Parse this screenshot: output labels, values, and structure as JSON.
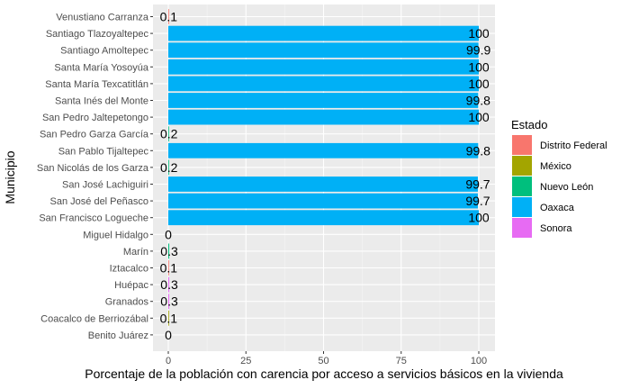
{
  "chart_data": {
    "type": "bar",
    "orientation": "horizontal",
    "xlabel": "Porcentaje de la población con carencia por acceso a servicios básicos en la vivienda",
    "ylabel": "Municipio",
    "xlim": [
      0,
      100
    ],
    "x_ticks": [
      0,
      25,
      50,
      75,
      100
    ],
    "grid": true,
    "legend": {
      "title": "Estado",
      "position": "right",
      "entries": [
        {
          "name": "Distrito Federal",
          "color": "#F8766D"
        },
        {
          "name": "México",
          "color": "#A3A500"
        },
        {
          "name": "Nuevo León",
          "color": "#00BF7D"
        },
        {
          "name": "Oaxaca",
          "color": "#00B0F6"
        },
        {
          "name": "Sonora",
          "color": "#E76BF3"
        }
      ]
    },
    "categories": [
      "Venustiano Carranza",
      "Santiago Tlazoyaltepec",
      "Santiago Amoltepec",
      "Santa María Yosoyúa",
      "Santa María Texcatitlán",
      "Santa Inés del Monte",
      "San Pedro Jaltepetongo",
      "San Pedro Garza García",
      "San Pablo Tijaltepec",
      "San Nicolás de los Garza",
      "San José Lachiguiri",
      "San José del Peñasco",
      "San Francisco Logueche",
      "Miguel Hidalgo",
      "Marín",
      "Iztacalco",
      "Huépac",
      "Granados",
      "Coacalco de Berriozábal",
      "Benito Juárez"
    ],
    "values": [
      0.1,
      100,
      99.9,
      100,
      100,
      99.8,
      100,
      0.2,
      99.8,
      0.2,
      99.7,
      99.7,
      100,
      0,
      0.3,
      0.1,
      0.3,
      0.3,
      0.1,
      0
    ],
    "labels": [
      "0.1",
      "100",
      "99.9",
      "100",
      "100",
      "99.8",
      "100",
      "0.2",
      "99.8",
      "0.2",
      "99.7",
      "99.7",
      "100",
      "0",
      "0.3",
      "0.1",
      "0.3",
      "0.3",
      "0.1",
      "0"
    ],
    "groups": [
      "Distrito Federal",
      "Oaxaca",
      "Oaxaca",
      "Oaxaca",
      "Oaxaca",
      "Oaxaca",
      "Oaxaca",
      "Nuevo León",
      "Oaxaca",
      "Nuevo León",
      "Oaxaca",
      "Oaxaca",
      "Oaxaca",
      "Distrito Federal",
      "Nuevo León",
      "Distrito Federal",
      "Sonora",
      "Sonora",
      "México",
      "Distrito Federal"
    ]
  }
}
